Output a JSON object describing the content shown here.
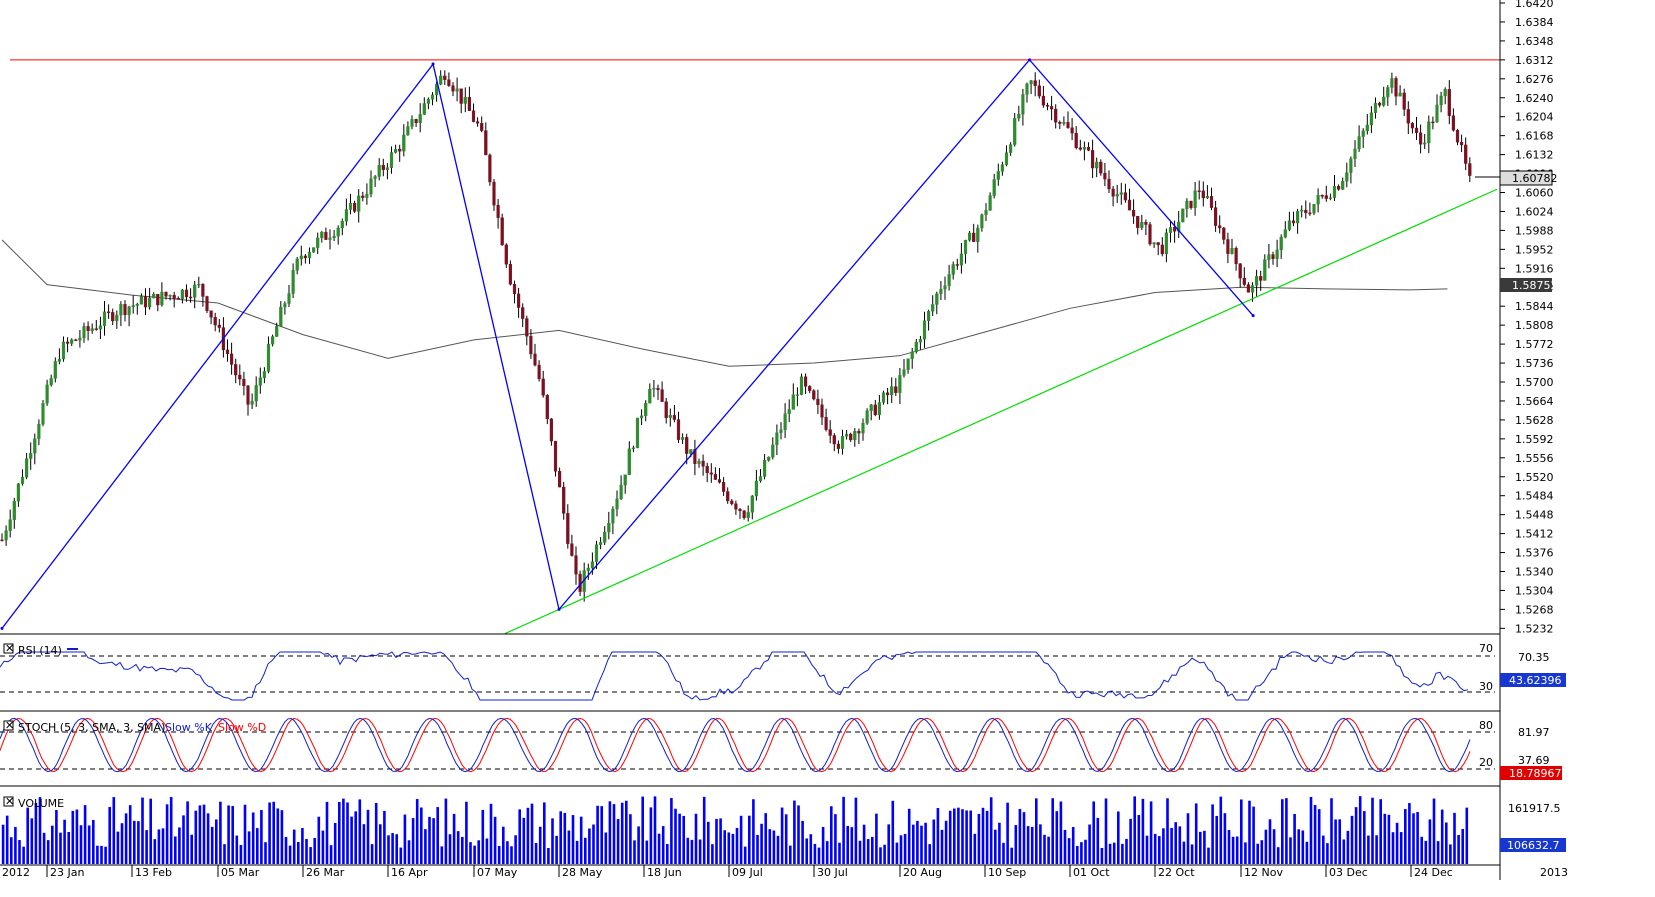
{
  "colors": {
    "background": "#ffffff",
    "grid": "#000000",
    "up_candle": "#2e8b2e",
    "down_candle": "#7a1020",
    "resistance": "#ff0000",
    "support": "#00dd00",
    "pattern": "#0000ff",
    "moving_average": "#555555",
    "rsi_line": "#1020d0",
    "stoch_k": "#1020d0",
    "stoch_d": "#ff0000",
    "volume": "#0000ff",
    "price_tag_bg": "#dddddd",
    "marker_bg": "#1638d0"
  },
  "main": {
    "price_ticks": [
      "1.6420",
      "1.6384",
      "1.6348",
      "1.6312",
      "1.6276",
      "1.6240",
      "1.6204",
      "1.6168",
      "1.6132",
      "1.6096",
      "1.6060",
      "1.6024",
      "1.5988",
      "1.5952",
      "1.5916",
      "1.5880",
      "1.5844",
      "1.5808",
      "1.5772",
      "1.5736",
      "1.5700",
      "1.5664",
      "1.5628",
      "1.5592",
      "1.5556",
      "1.5520",
      "1.5484",
      "1.5448",
      "1.5412",
      "1.5376",
      "1.5340",
      "1.5304",
      "1.5268",
      "1.5232"
    ],
    "current_price": "1.60782",
    "ma_value": "1.58752",
    "resistance_level": 1.6312
  },
  "x_labels": [
    "2012",
    "23 Jan",
    "13 Feb",
    "05 Mar",
    "26 Mar",
    "16 Apr",
    "07 May",
    "28 May",
    "18 Jun",
    "09 Jul",
    "30 Jul",
    "20 Aug",
    "10 Sep",
    "01 Oct",
    "22 Oct",
    "12 Nov",
    "03 Dec",
    "24 Dec",
    "2013"
  ],
  "rsi": {
    "title": "RSI (14)",
    "level_high": "70",
    "level_low": "30",
    "scale_label": "70.35",
    "value": "43.62396"
  },
  "stoch": {
    "title": "STOCH (5, 3, SMA, 3, SMA)",
    "k_label": "Slow %K",
    "d_label": "Slow %D",
    "level_high": "80",
    "level_low": "20",
    "scale_top": "81.97",
    "scale_mid": "37.69",
    "value": "18.78967"
  },
  "volume": {
    "title": "VOLUME",
    "scale_top": "161917.5",
    "value": "106632.7"
  },
  "chart_data": {
    "type": "candlestick",
    "symbol_timeframe": "daily",
    "ylim": [
      1.5214,
      1.6426
    ],
    "resistance": 1.6312,
    "support_line": {
      "from": {
        "x": "2012-05-28",
        "y": 1.5268
      },
      "to": {
        "x": "2013-01-02",
        "y": 1.6024
      }
    },
    "pattern_points": [
      {
        "x": "2012-01-02",
        "y": 1.5232
      },
      {
        "x": "2012-04-27",
        "y": 1.6304
      },
      {
        "x": "2012-05-28",
        "y": 1.5268
      },
      {
        "x": "2012-09-21",
        "y": 1.6312
      },
      {
        "x": "2012-11-15",
        "y": 1.5826
      }
    ],
    "moving_average": [
      {
        "x": "2012-01-02",
        "y": 1.597
      },
      {
        "x": "2012-01-23",
        "y": 1.5885
      },
      {
        "x": "2012-02-13",
        "y": 1.5865
      },
      {
        "x": "2012-03-05",
        "y": 1.585
      },
      {
        "x": "2012-03-26",
        "y": 1.579
      },
      {
        "x": "2012-04-16",
        "y": 1.5745
      },
      {
        "x": "2012-05-07",
        "y": 1.578
      },
      {
        "x": "2012-05-28",
        "y": 1.5798
      },
      {
        "x": "2012-06-18",
        "y": 1.5762
      },
      {
        "x": "2012-07-09",
        "y": 1.573
      },
      {
        "x": "2012-07-30",
        "y": 1.5736
      },
      {
        "x": "2012-08-20",
        "y": 1.575
      },
      {
        "x": "2012-09-10",
        "y": 1.5795
      },
      {
        "x": "2012-10-01",
        "y": 1.584
      },
      {
        "x": "2012-10-22",
        "y": 1.587
      },
      {
        "x": "2012-11-12",
        "y": 1.588
      },
      {
        "x": "2012-12-03",
        "y": 1.5877
      },
      {
        "x": "2012-12-24",
        "y": 1.5875
      },
      {
        "x": "2013-01-02",
        "y": 1.5877
      }
    ],
    "last_close": 1.60782,
    "last_ma": 1.58752,
    "rsi_last": 43.62396,
    "stoch_last": 18.78967,
    "volume_last": 106632.7
  }
}
